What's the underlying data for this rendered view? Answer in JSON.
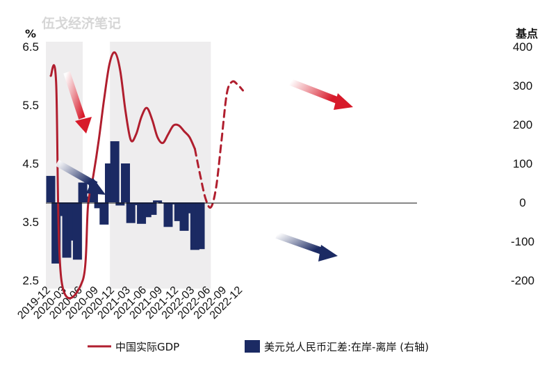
{
  "watermark": "伍戈经济笔记",
  "colors": {
    "gdp": "#b01e2e",
    "spread": "#1b2a63",
    "shade": "#eeedee",
    "axis": "#111111"
  },
  "chart_data": {
    "type": "line+bar",
    "left_axis": {
      "unit": "%",
      "min": 2.5,
      "max": 6.5,
      "ticks": [
        "6.5",
        "5.5",
        "4.5",
        "3.5",
        "2.5"
      ],
      "tick_values": [
        6.5,
        5.5,
        4.5,
        3.5,
        2.5
      ]
    },
    "right_axis": {
      "unit": "基点",
      "min": -200,
      "max": 400,
      "ticks": [
        "400",
        "300",
        "200",
        "100",
        "0",
        "-100",
        "-200"
      ],
      "tick_values": [
        400,
        300,
        200,
        100,
        0,
        -100,
        -200
      ]
    },
    "x_ticks": [
      "2019-12",
      "2020-03",
      "2020-06",
      "2020-09",
      "2020-12",
      "2021-03",
      "2021-06",
      "2021-09",
      "2021-12",
      "2022-03",
      "2022-06",
      "2022-09",
      "2022-12"
    ],
    "shaded_periods": [
      {
        "from": "2019-12",
        "to": "2020-06"
      },
      {
        "from": "2020-12",
        "to": "2022-06"
      }
    ],
    "series": [
      {
        "name": "中国实际GDP",
        "axis": "left",
        "style": "line",
        "x": [
          "2019-12",
          "2020-01",
          "2020-02",
          "2020-06",
          "2020-07",
          "2020-08",
          "2020-09",
          "2020-10",
          "2020-11",
          "2020-12",
          "2021-01",
          "2021-02",
          "2021-03",
          "2021-04",
          "2021-05",
          "2021-06",
          "2021-07",
          "2021-08",
          "2021-09",
          "2021-10",
          "2021-11",
          "2021-12",
          "2022-01",
          "2022-02",
          "2022-03"
        ],
        "y": [
          6.0,
          5.9,
          2.5,
          2.5,
          3.8,
          4.3,
          4.9,
          5.6,
          6.2,
          6.4,
          6.1,
          5.4,
          4.9,
          5.0,
          5.3,
          5.45,
          5.25,
          4.95,
          4.85,
          5.0,
          5.15,
          5.15,
          5.05,
          4.95,
          4.75
        ]
      },
      {
        "name": "中国实际GDP",
        "axis": "left",
        "style": "dashed",
        "x": [
          "2022-03",
          "2022-04",
          "2022-05",
          "2022-06",
          "2022-07",
          "2022-08",
          "2022-09",
          "2022-10",
          "2022-11",
          "2022-12"
        ],
        "y": [
          4.75,
          4.3,
          3.9,
          3.75,
          4.1,
          4.9,
          5.7,
          5.9,
          5.85,
          5.75
        ]
      },
      {
        "name": "美元兑人民币汇差:在岸-离岸 (右轴)",
        "axis": "right",
        "style": "bar",
        "x": [
          "2019-12",
          "2020-01",
          "2020-02",
          "2020-03",
          "2020-04",
          "2020-05",
          "2020-06",
          "2020-07",
          "2020-08",
          "2020-09",
          "2020-10",
          "2020-11",
          "2020-12",
          "2021-01",
          "2021-02",
          "2021-03",
          "2021-04",
          "2021-05",
          "2021-06",
          "2021-07",
          "2021-08",
          "2021-09",
          "2021-10",
          "2021-11",
          "2021-12",
          "2022-01",
          "2022-02",
          "2022-03",
          "2022-04",
          "2022-05"
        ],
        "values": [
          68,
          -157,
          -35,
          -142,
          -98,
          -147,
          51,
          15,
          47,
          -15,
          -57,
          100,
          157,
          -8,
          100,
          -53,
          -7,
          -55,
          -38,
          -32,
          5,
          -3,
          -63,
          -5,
          -48,
          -73,
          -28,
          -122,
          -120,
          0
        ]
      }
    ],
    "legend": [
      "中国实际GDP",
      "美元兑人民币汇差:在岸-离岸 (右轴)"
    ]
  }
}
